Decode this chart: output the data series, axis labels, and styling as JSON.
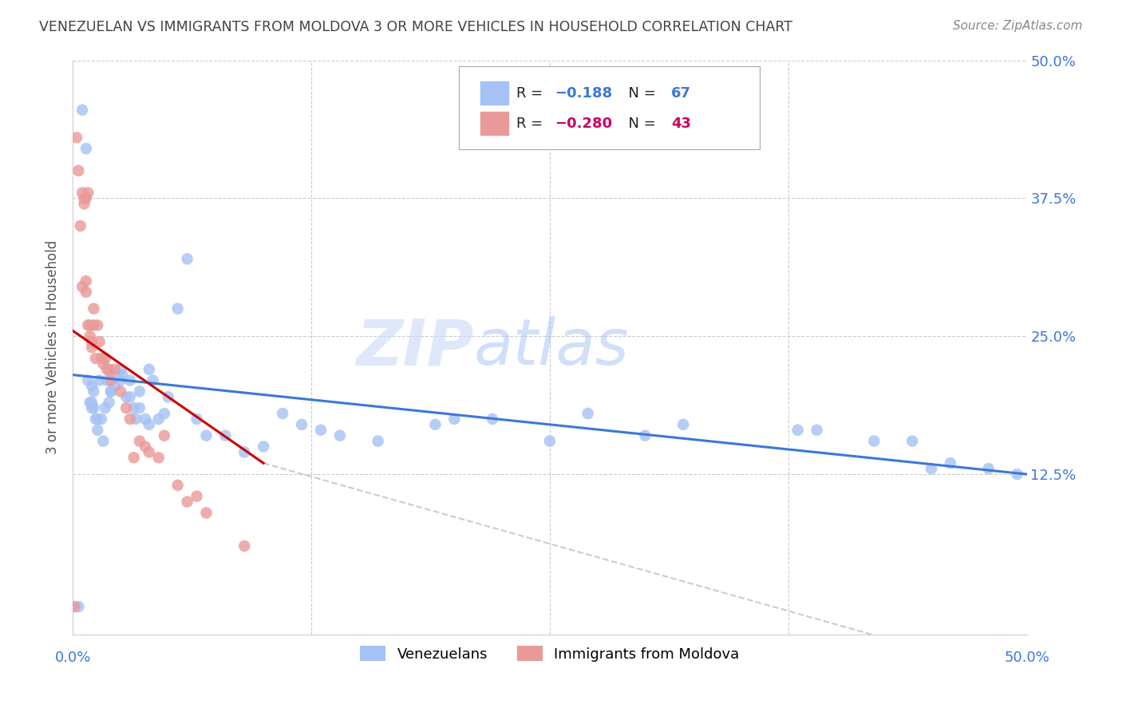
{
  "title": "VENEZUELAN VS IMMIGRANTS FROM MOLDOVA 3 OR MORE VEHICLES IN HOUSEHOLD CORRELATION CHART",
  "source": "Source: ZipAtlas.com",
  "ylabel": "3 or more Vehicles in Household",
  "xmin": 0.0,
  "xmax": 0.5,
  "ymin": 0.0,
  "ymax": 0.5,
  "blue_color": "#a4c2f4",
  "pink_color": "#ea9999",
  "line_blue": "#3c78d8",
  "line_pink": "#cc0000",
  "line_gray": "#cccccc",
  "title_color": "#434343",
  "axis_label_color": "#3c78d8",
  "watermark_color": "#cfe2f3",
  "venezuelan_x": [
    0.003,
    0.005,
    0.007,
    0.008,
    0.009,
    0.01,
    0.01,
    0.01,
    0.011,
    0.011,
    0.012,
    0.013,
    0.013,
    0.014,
    0.015,
    0.016,
    0.017,
    0.018,
    0.019,
    0.02,
    0.02,
    0.022,
    0.023,
    0.025,
    0.025,
    0.026,
    0.028,
    0.03,
    0.032,
    0.033,
    0.035,
    0.038,
    0.04,
    0.042,
    0.045,
    0.048,
    0.05,
    0.055,
    0.06,
    0.065,
    0.07,
    0.08,
    0.09,
    0.1,
    0.11,
    0.12,
    0.13,
    0.14,
    0.16,
    0.19,
    0.2,
    0.22,
    0.25,
    0.27,
    0.3,
    0.32,
    0.38,
    0.39,
    0.42,
    0.44,
    0.45,
    0.46,
    0.48,
    0.495,
    0.03,
    0.035,
    0.04
  ],
  "venezuelan_y": [
    0.005,
    0.455,
    0.42,
    0.21,
    0.19,
    0.205,
    0.19,
    0.185,
    0.2,
    0.185,
    0.175,
    0.175,
    0.165,
    0.21,
    0.175,
    0.155,
    0.185,
    0.21,
    0.19,
    0.2,
    0.2,
    0.205,
    0.215,
    0.22,
    0.21,
    0.215,
    0.195,
    0.195,
    0.185,
    0.175,
    0.185,
    0.175,
    0.17,
    0.21,
    0.175,
    0.18,
    0.195,
    0.275,
    0.32,
    0.175,
    0.16,
    0.16,
    0.145,
    0.15,
    0.18,
    0.17,
    0.165,
    0.16,
    0.155,
    0.17,
    0.175,
    0.175,
    0.155,
    0.18,
    0.16,
    0.17,
    0.165,
    0.165,
    0.155,
    0.155,
    0.13,
    0.135,
    0.13,
    0.125,
    0.21,
    0.2,
    0.22
  ],
  "moldova_x": [
    0.001,
    0.002,
    0.003,
    0.004,
    0.005,
    0.005,
    0.006,
    0.006,
    0.007,
    0.007,
    0.007,
    0.008,
    0.008,
    0.009,
    0.009,
    0.01,
    0.01,
    0.011,
    0.011,
    0.012,
    0.013,
    0.014,
    0.015,
    0.016,
    0.017,
    0.018,
    0.019,
    0.02,
    0.022,
    0.025,
    0.028,
    0.03,
    0.032,
    0.035,
    0.038,
    0.04,
    0.045,
    0.048,
    0.055,
    0.06,
    0.065,
    0.07,
    0.09
  ],
  "moldova_y": [
    0.005,
    0.43,
    0.4,
    0.35,
    0.295,
    0.38,
    0.375,
    0.37,
    0.375,
    0.29,
    0.3,
    0.26,
    0.38,
    0.26,
    0.25,
    0.245,
    0.24,
    0.275,
    0.26,
    0.23,
    0.26,
    0.245,
    0.23,
    0.225,
    0.23,
    0.22,
    0.22,
    0.21,
    0.22,
    0.2,
    0.185,
    0.175,
    0.14,
    0.155,
    0.15,
    0.145,
    0.14,
    0.16,
    0.115,
    0.1,
    0.105,
    0.09,
    0.06
  ]
}
